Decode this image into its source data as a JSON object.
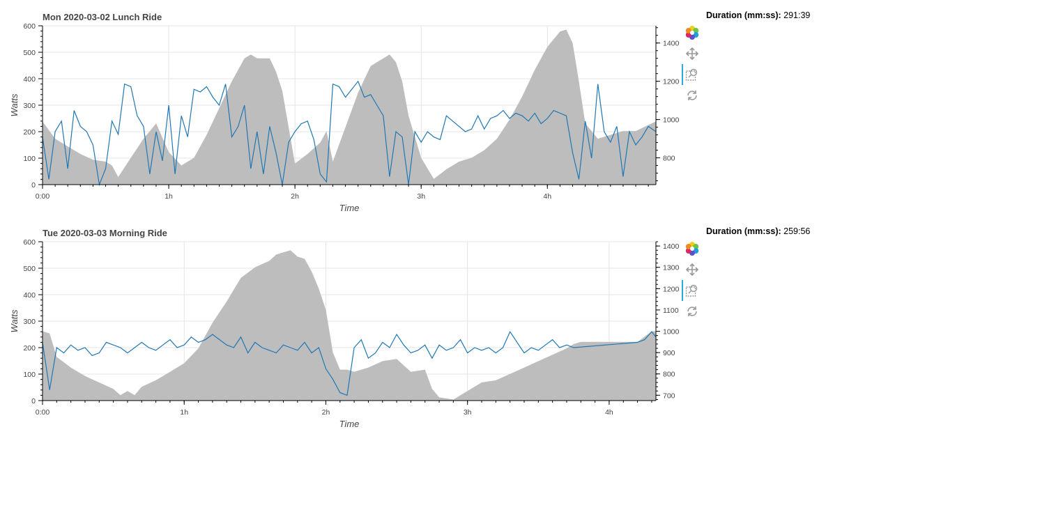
{
  "panels": [
    {
      "title": "Mon 2020-03-02 Lunch Ride",
      "duration_label": "Duration (mm:ss):",
      "duration_value": "291:39"
    },
    {
      "title": "Tue 2020-03-03 Morning Ride",
      "duration_label": "Duration (mm:ss):",
      "duration_value": "259:56"
    }
  ],
  "toolbar": {
    "tools": [
      "logo-icon",
      "pan-icon",
      "box-zoom-icon",
      "reset-icon"
    ],
    "active_color": "#26aae1"
  },
  "chart_data": [
    {
      "type": "line",
      "title": "Mon 2020-03-02 Lunch Ride",
      "xlabel": "Time",
      "ylabel": "Watts",
      "x_unit": "hours",
      "x_ticks": [
        "0:00",
        "1h",
        "2h",
        "3h",
        "4h"
      ],
      "xlim": [
        0,
        4.86
      ],
      "ylim": [
        0,
        600
      ],
      "y_ticks": [
        0,
        100,
        200,
        300,
        400,
        500,
        600
      ],
      "y2lim": [
        660,
        1490
      ],
      "y2_ticks": [
        800,
        1000,
        1200,
        1400
      ],
      "grid": true,
      "series": [
        {
          "role": "elevation",
          "type": "area",
          "axis": "right",
          "color": "#bdbdbd",
          "x": [
            0,
            0.1,
            0.2,
            0.3,
            0.4,
            0.5,
            0.55,
            0.6,
            0.7,
            0.8,
            0.9,
            1.0,
            1.1,
            1.2,
            1.3,
            1.4,
            1.5,
            1.6,
            1.65,
            1.7,
            1.8,
            1.85,
            1.9,
            2.0,
            2.1,
            2.2,
            2.25,
            2.3,
            2.4,
            2.5,
            2.6,
            2.7,
            2.75,
            2.8,
            2.85,
            2.9,
            3.0,
            3.1,
            3.2,
            3.3,
            3.4,
            3.5,
            3.6,
            3.7,
            3.8,
            3.9,
            4.0,
            4.1,
            4.15,
            4.2,
            4.25,
            4.3,
            4.4,
            4.5,
            4.6,
            4.7,
            4.86
          ],
          "y": [
            990,
            900,
            860,
            820,
            790,
            780,
            760,
            700,
            800,
            900,
            980,
            830,
            760,
            800,
            920,
            1060,
            1200,
            1320,
            1340,
            1320,
            1320,
            1250,
            1150,
            770,
            820,
            880,
            940,
            780,
            960,
            1140,
            1280,
            1320,
            1340,
            1300,
            1200,
            1020,
            800,
            690,
            740,
            780,
            800,
            840,
            900,
            1000,
            1120,
            1260,
            1380,
            1460,
            1470,
            1400,
            1200,
            980,
            900,
            920,
            940,
            940,
            990
          ]
        },
        {
          "role": "power",
          "type": "line",
          "axis": "left",
          "color": "#1f77b4",
          "x": [
            0,
            0.05,
            0.1,
            0.15,
            0.2,
            0.25,
            0.3,
            0.35,
            0.4,
            0.45,
            0.5,
            0.55,
            0.6,
            0.65,
            0.7,
            0.75,
            0.8,
            0.85,
            0.9,
            0.95,
            1.0,
            1.05,
            1.1,
            1.15,
            1.2,
            1.25,
            1.3,
            1.35,
            1.4,
            1.45,
            1.5,
            1.55,
            1.6,
            1.65,
            1.7,
            1.75,
            1.8,
            1.85,
            1.9,
            1.95,
            2.0,
            2.05,
            2.1,
            2.15,
            2.2,
            2.25,
            2.3,
            2.35,
            2.4,
            2.45,
            2.5,
            2.55,
            2.6,
            2.65,
            2.7,
            2.75,
            2.8,
            2.85,
            2.9,
            2.95,
            3.0,
            3.05,
            3.1,
            3.15,
            3.2,
            3.25,
            3.3,
            3.35,
            3.4,
            3.45,
            3.5,
            3.55,
            3.6,
            3.65,
            3.7,
            3.75,
            3.8,
            3.85,
            3.9,
            3.95,
            4.0,
            4.05,
            4.1,
            4.15,
            4.2,
            4.25,
            4.3,
            4.35,
            4.4,
            4.45,
            4.5,
            4.55,
            4.6,
            4.65,
            4.7,
            4.75,
            4.8,
            4.86
          ],
          "y": [
            180,
            20,
            200,
            240,
            60,
            280,
            220,
            200,
            150,
            0,
            60,
            240,
            190,
            380,
            370,
            260,
            220,
            40,
            200,
            90,
            300,
            40,
            260,
            180,
            360,
            350,
            370,
            330,
            300,
            380,
            180,
            220,
            300,
            60,
            200,
            40,
            220,
            120,
            0,
            160,
            200,
            230,
            240,
            170,
            40,
            10,
            380,
            370,
            330,
            360,
            390,
            330,
            340,
            300,
            260,
            30,
            200,
            180,
            0,
            200,
            160,
            200,
            180,
            170,
            260,
            240,
            220,
            200,
            210,
            260,
            210,
            250,
            260,
            280,
            250,
            270,
            260,
            240,
            270,
            230,
            250,
            280,
            270,
            260,
            120,
            20,
            240,
            100,
            380,
            200,
            160,
            220,
            30,
            200,
            150,
            180,
            220,
            200
          ]
        }
      ]
    },
    {
      "type": "line",
      "title": "Tue 2020-03-03 Morning Ride",
      "xlabel": "Time",
      "ylabel": "Watts",
      "x_unit": "hours",
      "x_ticks": [
        "0:00",
        "1h",
        "2h",
        "3h",
        "4h"
      ],
      "xlim": [
        0,
        4.33
      ],
      "ylim": [
        0,
        600
      ],
      "y_ticks": [
        0,
        100,
        200,
        300,
        400,
        500,
        600
      ],
      "y2lim": [
        675,
        1420
      ],
      "y2_ticks": [
        700,
        800,
        900,
        1000,
        1100,
        1200,
        1300,
        1400
      ],
      "grid": true,
      "series": [
        {
          "role": "elevation",
          "type": "area",
          "axis": "right",
          "color": "#bdbdbd",
          "x": [
            0,
            0.05,
            0.1,
            0.2,
            0.3,
            0.4,
            0.5,
            0.55,
            0.6,
            0.65,
            0.7,
            0.8,
            0.9,
            1.0,
            1.1,
            1.2,
            1.3,
            1.4,
            1.5,
            1.6,
            1.65,
            1.7,
            1.75,
            1.8,
            1.85,
            1.9,
            1.95,
            2.0,
            2.05,
            2.1,
            2.15,
            2.2,
            2.3,
            2.4,
            2.5,
            2.6,
            2.7,
            2.75,
            2.8,
            2.9,
            3.0,
            3.1,
            3.2,
            3.3,
            3.4,
            3.5,
            3.6,
            3.7,
            3.75,
            3.8,
            3.9,
            4.0,
            4.1,
            4.2,
            4.3,
            4.33
          ],
          "y": [
            1000,
            990,
            880,
            830,
            790,
            760,
            730,
            700,
            720,
            700,
            740,
            770,
            810,
            850,
            920,
            1040,
            1140,
            1250,
            1300,
            1330,
            1360,
            1370,
            1380,
            1350,
            1340,
            1280,
            1200,
            1100,
            900,
            820,
            820,
            810,
            830,
            860,
            870,
            810,
            820,
            730,
            690,
            680,
            720,
            760,
            770,
            800,
            830,
            860,
            890,
            920,
            940,
            950,
            950,
            950,
            950,
            950,
            1000,
            1000
          ]
        },
        {
          "role": "power",
          "type": "line",
          "axis": "left",
          "color": "#1f77b4",
          "x": [
            0,
            0.05,
            0.1,
            0.15,
            0.2,
            0.25,
            0.3,
            0.35,
            0.4,
            0.45,
            0.5,
            0.55,
            0.6,
            0.65,
            0.7,
            0.75,
            0.8,
            0.85,
            0.9,
            0.95,
            1.0,
            1.05,
            1.1,
            1.15,
            1.2,
            1.25,
            1.3,
            1.35,
            1.4,
            1.45,
            1.5,
            1.55,
            1.6,
            1.65,
            1.7,
            1.75,
            1.8,
            1.85,
            1.9,
            1.95,
            2.0,
            2.05,
            2.1,
            2.15,
            2.2,
            2.25,
            2.3,
            2.35,
            2.4,
            2.45,
            2.5,
            2.55,
            2.6,
            2.65,
            2.7,
            2.75,
            2.8,
            2.85,
            2.9,
            2.95,
            3.0,
            3.05,
            3.1,
            3.15,
            3.2,
            3.25,
            3.3,
            3.35,
            3.4,
            3.45,
            3.5,
            3.55,
            3.6,
            3.65,
            3.7,
            3.75,
            4.2,
            4.25,
            4.3,
            4.33
          ],
          "y": [
            220,
            40,
            200,
            180,
            210,
            190,
            200,
            170,
            180,
            220,
            210,
            200,
            180,
            200,
            220,
            200,
            190,
            210,
            230,
            200,
            210,
            240,
            220,
            230,
            250,
            230,
            210,
            200,
            240,
            180,
            220,
            200,
            190,
            180,
            210,
            200,
            190,
            220,
            180,
            200,
            120,
            80,
            30,
            20,
            200,
            230,
            160,
            180,
            220,
            200,
            250,
            210,
            180,
            190,
            210,
            160,
            210,
            190,
            200,
            230,
            180,
            200,
            190,
            200,
            180,
            200,
            260,
            220,
            180,
            200,
            190,
            210,
            230,
            200,
            210,
            200,
            220,
            230,
            260,
            240
          ]
        }
      ]
    }
  ]
}
